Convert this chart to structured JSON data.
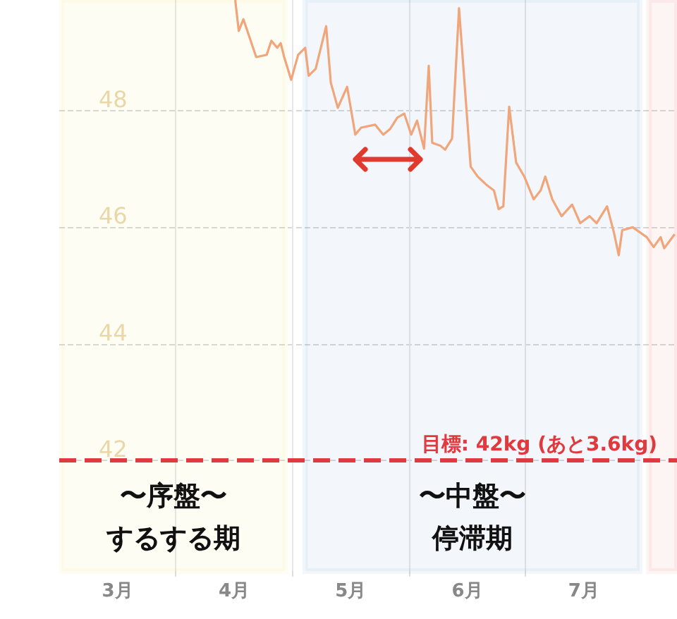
{
  "chart_data": {
    "type": "line",
    "grid": true,
    "marker": "none",
    "line_style": "solid",
    "xlim": [
      3.0,
      8.3
    ],
    "xticks": [
      {
        "value": 3.5,
        "label": "3月"
      },
      {
        "value": 4,
        "label": null
      },
      {
        "value": 4.5,
        "label": "4月"
      },
      {
        "value": 5,
        "label": null
      },
      {
        "value": 5.5,
        "label": "5月"
      },
      {
        "value": 6,
        "label": null
      },
      {
        "value": 6.5,
        "label": "6月"
      },
      {
        "value": 7,
        "label": null
      },
      {
        "value": 7.5,
        "label": "7月"
      }
    ],
    "ylim": [
      40.1,
      49.9
    ],
    "yticks": [
      42,
      44,
      46,
      48
    ],
    "series": [
      {
        "color": "#f0a57a",
        "x": [
          4.51,
          4.54,
          4.58,
          4.69,
          4.78,
          4.82,
          4.87,
          4.9,
          4.93,
          4.99,
          5.05,
          5.11,
          5.14,
          5.2,
          5.29,
          5.33,
          5.39,
          5.47,
          5.54,
          5.59,
          5.71,
          5.78,
          5.84,
          5.9,
          5.96,
          6.02,
          6.07,
          6.13,
          6.17,
          6.2,
          6.27,
          6.31,
          6.37,
          6.43,
          6.53,
          6.59,
          6.67,
          6.73,
          6.77,
          6.81,
          6.86,
          6.92,
          6.99,
          7.07,
          7.13,
          7.17,
          7.23,
          7.31,
          7.4,
          7.47,
          7.55,
          7.61,
          7.7,
          7.76,
          7.8,
          7.83,
          7.92,
          8.04,
          8.1,
          8.16,
          8.19,
          8.28
        ],
        "values": [
          49.9,
          49.37,
          49.57,
          48.92,
          48.96,
          49.2,
          49.08,
          49.16,
          48.92,
          48.53,
          48.96,
          49.08,
          48.6,
          48.72,
          49.45,
          48.48,
          48.05,
          48.41,
          47.59,
          47.71,
          47.76,
          47.59,
          47.69,
          47.88,
          47.95,
          47.59,
          47.83,
          47.35,
          48.77,
          47.45,
          47.4,
          47.33,
          47.52,
          49.76,
          47.04,
          46.87,
          46.72,
          46.63,
          46.31,
          46.36,
          48.07,
          47.11,
          46.87,
          46.48,
          46.63,
          46.87,
          46.48,
          46.19,
          46.39,
          46.07,
          46.19,
          46.07,
          46.36,
          45.9,
          45.52,
          45.95,
          46.0,
          45.83,
          45.66,
          45.83,
          45.64,
          45.88
        ]
      }
    ],
    "ref_lines": [
      {
        "axis": "y",
        "value": 42,
        "label": "目標: 42kg (あと3.6kg)",
        "color": "#e0393e",
        "line_style": "dashed"
      }
    ],
    "bands": [
      {
        "axis": "x",
        "from": 3.02,
        "to": 4.94,
        "label": "〜序盤〜するする期",
        "color": "#f7e35a"
      },
      {
        "axis": "x",
        "from": 5.11,
        "to": 7.98,
        "label": "〜中盤〜停滞期",
        "color": "#5b8ccc"
      },
      {
        "axis": "x",
        "from": 8.06,
        "to": 8.3,
        "color": "#e26a6a"
      }
    ]
  }
}
